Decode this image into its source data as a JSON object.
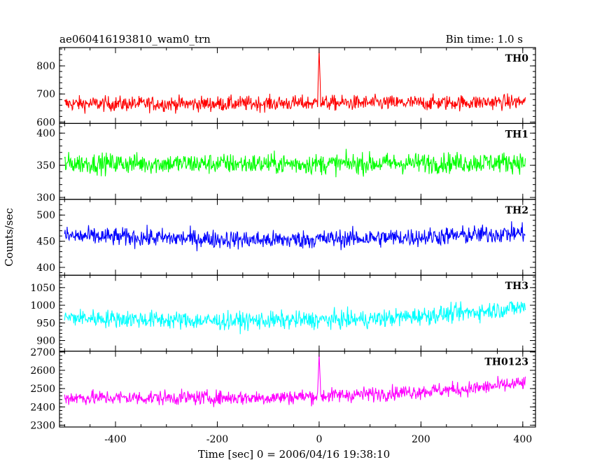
{
  "chart_data": {
    "type": "line",
    "title": "ae060416193810_wam0_trn",
    "bin_time_label": "Bin time: 1.0 s",
    "xlabel": "Time [sec] 0 = 2006/04/16 19:38:10",
    "ylabel": "Counts/sec",
    "xlim": [
      -510,
      425
    ],
    "x_data_range": [
      -500,
      405
    ],
    "xticks": [
      -400,
      -200,
      0,
      200,
      400
    ],
    "panels": [
      {
        "name": "TH0",
        "color": "#ff0000",
        "ylim": [
          595,
          865
        ],
        "yticks": [
          600,
          700,
          800
        ],
        "baseline": [
          [
            -500,
            665
          ],
          [
            -200,
            665
          ],
          [
            0,
            668
          ],
          [
            200,
            668
          ],
          [
            405,
            672
          ]
        ],
        "noise": 32,
        "spike": {
          "x": 0,
          "y": 860
        }
      },
      {
        "name": "TH1",
        "color": "#00ff00",
        "ylim": [
          297,
          415
        ],
        "yticks": [
          300,
          350,
          400
        ],
        "baseline": [
          [
            -500,
            353
          ],
          [
            0,
            352
          ],
          [
            405,
            355
          ]
        ],
        "noise": 19
      },
      {
        "name": "TH2",
        "color": "#0000ff",
        "ylim": [
          385,
          530
        ],
        "yticks": [
          400,
          450,
          500
        ],
        "baseline": [
          [
            -500,
            460
          ],
          [
            -100,
            452
          ],
          [
            200,
            458
          ],
          [
            405,
            466
          ]
        ],
        "noise": 21
      },
      {
        "name": "TH3",
        "color": "#00ffff",
        "ylim": [
          870,
          1085
        ],
        "yticks": [
          900,
          950,
          1000,
          1050
        ],
        "baseline": [
          [
            -500,
            965
          ],
          [
            -200,
            955
          ],
          [
            100,
            960
          ],
          [
            300,
            980
          ],
          [
            405,
            995
          ]
        ],
        "noise": 30
      },
      {
        "name": "TH0123",
        "color": "#ff00ff",
        "ylim": [
          2290,
          2705
        ],
        "yticks": [
          2300,
          2400,
          2500,
          2600,
          2700
        ],
        "baseline": [
          [
            -500,
            2450
          ],
          [
            -100,
            2450
          ],
          [
            100,
            2470
          ],
          [
            300,
            2500
          ],
          [
            405,
            2530
          ]
        ],
        "noise": 48,
        "spike": {
          "x": 0,
          "y": 2690
        }
      }
    ]
  }
}
